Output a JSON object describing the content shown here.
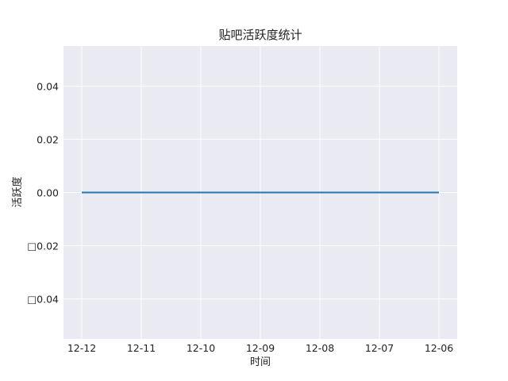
{
  "chart_data": {
    "type": "line",
    "title": "贴吧活跃度统计",
    "xlabel": "时间",
    "ylabel": "活跃度",
    "categories": [
      "12-12",
      "12-11",
      "12-10",
      "12-09",
      "12-08",
      "12-07",
      "12-06"
    ],
    "series": [
      {
        "values": [
          0,
          0,
          0,
          0,
          0,
          0,
          0
        ],
        "color": "#1f77b4"
      }
    ],
    "yticks": [
      {
        "value": 0.04,
        "label": "0.04"
      },
      {
        "value": 0.02,
        "label": "0.02"
      },
      {
        "value": 0.0,
        "label": "0.00"
      },
      {
        "value": -0.02,
        "label": "□0.02"
      },
      {
        "value": -0.04,
        "label": "□0.04"
      }
    ],
    "ylim": [
      -0.055,
      0.055
    ],
    "grid": true,
    "style": {
      "plot_background": "#eaeaf2",
      "grid_color": "#ffffff"
    }
  }
}
